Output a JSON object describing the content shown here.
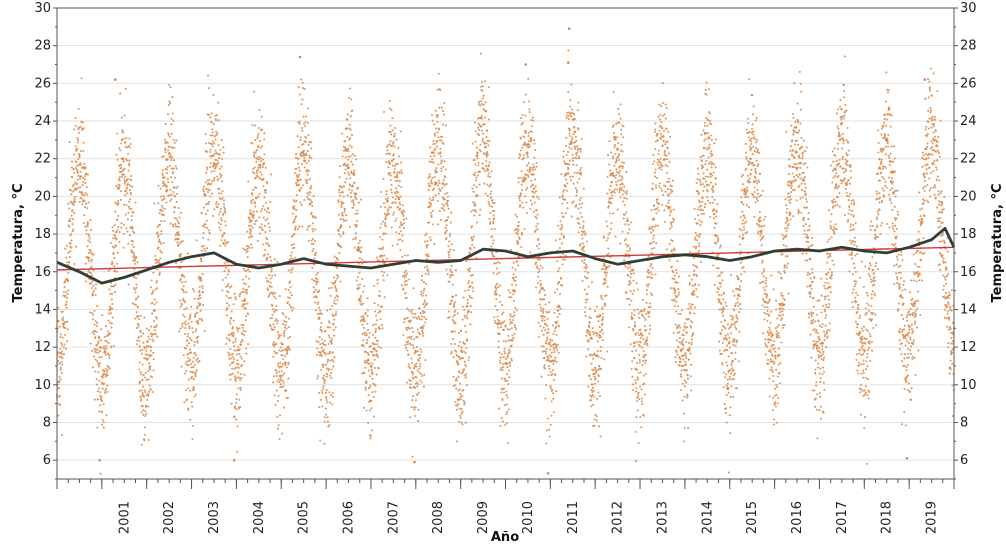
{
  "chart_data": {
    "type": "scatter",
    "title": "",
    "xlabel": "Año",
    "ylabel_left": "Temperatura, °C",
    "ylabel_right": "Temperatura, °C",
    "xlim": [
      2000.0,
      2020.0
    ],
    "ylim": [
      5,
      30
    ],
    "x_ticks": [
      "2001",
      "2002",
      "2003",
      "2004",
      "2005",
      "2006",
      "2007",
      "2008",
      "2009",
      "2010",
      "2011",
      "2012",
      "2013",
      "2014",
      "2015",
      "2016",
      "2017",
      "2018",
      "2019"
    ],
    "y_ticks": [
      6,
      8,
      10,
      12,
      14,
      16,
      18,
      20,
      22,
      24,
      26,
      28,
      30
    ],
    "grid": true,
    "legend": "none",
    "series": [
      {
        "type": "scatter",
        "color": "#d9894a",
        "points_per_year": 365,
        "annual_mean": [
          16.2,
          15.6,
          16.4,
          16.9,
          16.2,
          16.6,
          16.3,
          16.3,
          16.6,
          17.1,
          16.8,
          17.0,
          16.4,
          16.8,
          16.8,
          16.6,
          17.1,
          17.2,
          17.0,
          17.7
        ],
        "annual_amplitude": [
          5.8,
          6.0,
          5.6,
          5.8,
          5.9,
          6.2,
          5.9,
          5.6,
          6.0,
          6.1,
          5.8,
          6.4,
          5.7,
          5.9,
          5.7,
          5.6,
          5.7,
          5.8,
          5.7,
          5.5
        ],
        "peak_day_of_year": 180,
        "extremes": [
          {
            "x": 2001.3,
            "y": 26.2
          },
          {
            "x": 2005.42,
            "y": 27.4
          },
          {
            "x": 2011.42,
            "y": 28.9
          },
          {
            "x": 2010.45,
            "y": 27.0
          },
          {
            "x": 2011.4,
            "y": 27.1
          },
          {
            "x": 2019.35,
            "y": 26.2
          },
          {
            "x": 2000.95,
            "y": 6.0
          },
          {
            "x": 2007.97,
            "y": 5.9
          },
          {
            "x": 2010.95,
            "y": 5.3
          },
          {
            "x": 2003.95,
            "y": 6.0
          },
          {
            "x": 2018.95,
            "y": 6.1
          }
        ]
      },
      {
        "type": "line",
        "color": "#2f3f35",
        "x": [
          2000.0,
          2000.5,
          2001.0,
          2001.5,
          2002.0,
          2002.5,
          2003.0,
          2003.5,
          2004.0,
          2004.5,
          2005.0,
          2005.5,
          2006.0,
          2006.5,
          2007.0,
          2007.5,
          2008.0,
          2008.5,
          2009.0,
          2009.5,
          2010.0,
          2010.5,
          2011.0,
          2011.5,
          2012.0,
          2012.5,
          2013.0,
          2013.5,
          2014.0,
          2014.5,
          2015.0,
          2015.5,
          2016.0,
          2016.5,
          2017.0,
          2017.5,
          2018.0,
          2018.5,
          2019.0,
          2019.5,
          2019.8,
          2020.0
        ],
        "y": [
          16.5,
          16.0,
          15.4,
          15.7,
          16.1,
          16.5,
          16.8,
          17.0,
          16.4,
          16.2,
          16.4,
          16.7,
          16.4,
          16.3,
          16.2,
          16.4,
          16.6,
          16.5,
          16.6,
          17.2,
          17.1,
          16.8,
          17.0,
          17.1,
          16.7,
          16.4,
          16.6,
          16.8,
          16.9,
          16.8,
          16.6,
          16.8,
          17.1,
          17.2,
          17.1,
          17.3,
          17.1,
          17.0,
          17.3,
          17.7,
          18.3,
          17.3
        ]
      },
      {
        "type": "line",
        "color": "#d23a3a",
        "x": [
          2000.0,
          2020.0
        ],
        "y": [
          16.1,
          17.3
        ]
      }
    ]
  }
}
